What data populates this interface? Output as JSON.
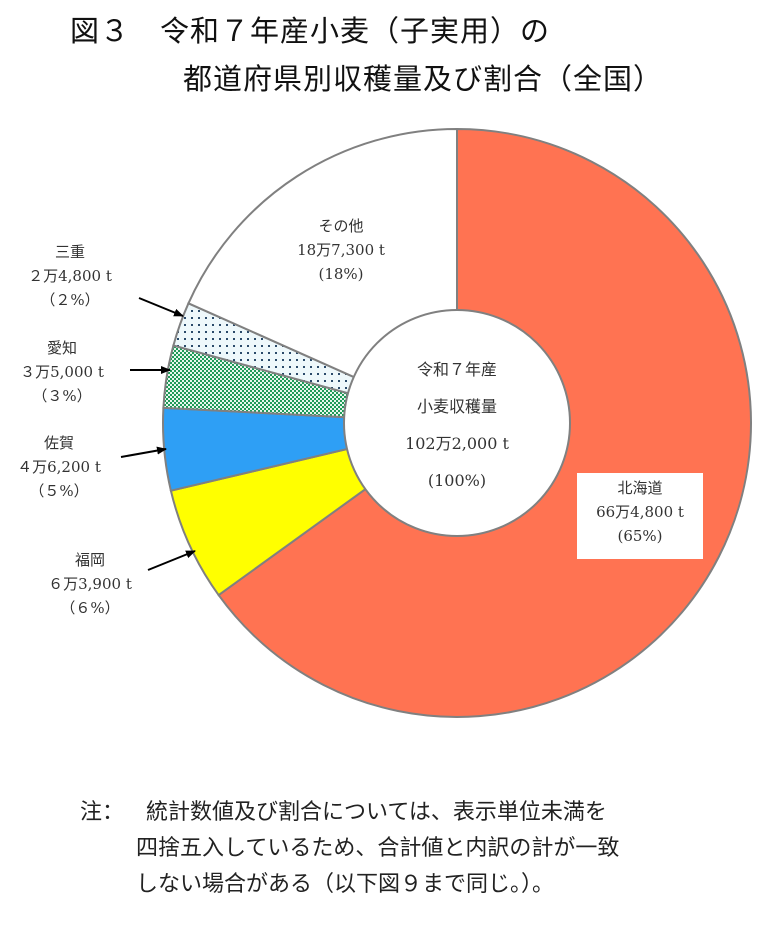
{
  "title": {
    "line1": "図３　令和７年産小麦（子実用）の",
    "line2": "都道府県別収穫量及び割合（全国）"
  },
  "center_label": {
    "line1": "令和７年産",
    "line2": "小麦収穫量",
    "line3": "102万2,000 t",
    "line4": "(100%)"
  },
  "labels": {
    "hokkaido": {
      "name": "北海道",
      "value": "66万4,800 t",
      "pct": "(65%)"
    },
    "fukuoka": {
      "name": "福岡",
      "value": "６万3,900 t",
      "pct": "（６%）"
    },
    "saga": {
      "name": "佐賀",
      "value": "４万6,200 t",
      "pct": "（５%）"
    },
    "aichi": {
      "name": "愛知",
      "value": "３万5,000 t",
      "pct": "（３%）"
    },
    "mie": {
      "name": "三重",
      "value": "２万4,800 t",
      "pct": "（２%）"
    },
    "other": {
      "name": "その他",
      "value": "18万7,300 t",
      "pct": "(18%)"
    }
  },
  "note": {
    "prefix": "注：",
    "line1": "統計数値及び割合については、表示単位未満を",
    "line2": "四捨五入しているため、合計値と内訳の計が一致",
    "line3": "しない場合がある（以下図９まで同じ。）。"
  },
  "colors": {
    "hokkaido": "#ff7352",
    "fukuoka": "#ffff00",
    "saga": "#2e9ff5",
    "aichi": "#2fa868",
    "mie": "#e6f5fa",
    "other": "#ffffff",
    "stroke": "#808080"
  },
  "chart_data": {
    "type": "pie",
    "subtype": "donut",
    "title": "図３　令和７年産小麦（子実用）の都道府県別収穫量及び割合（全国）",
    "unit": "t",
    "total": 1022000,
    "total_label": "令和７年産 小麦収穫量 102万2,000 t (100%)",
    "start_angle_deg": 0,
    "direction": "clockwise",
    "categories": [
      "北海道",
      "福岡",
      "佐賀",
      "愛知",
      "三重",
      "その他"
    ],
    "values": [
      664800,
      63900,
      46200,
      35000,
      24800,
      187300
    ],
    "percent": [
      65,
      6,
      5,
      3,
      2,
      18
    ],
    "fill_patterns": [
      "solid",
      "solid",
      "solid",
      "checker",
      "dots",
      "solid"
    ],
    "legend": "none (direct labels with arrows)"
  }
}
